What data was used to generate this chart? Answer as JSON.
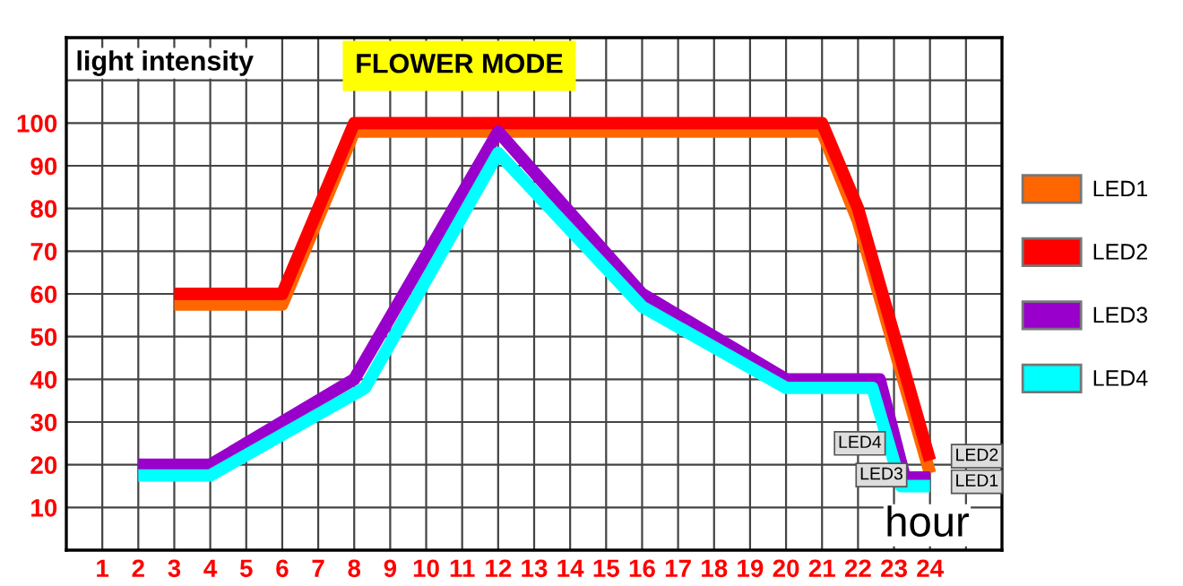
{
  "chart_data": {
    "type": "line",
    "title": "FLOWER MODE",
    "xlabel": "hour",
    "ylabel": "light intensity",
    "xlim": [
      0,
      26
    ],
    "ylim": [
      0,
      120
    ],
    "xticks": [
      1,
      2,
      3,
      4,
      5,
      6,
      7,
      8,
      9,
      10,
      11,
      12,
      13,
      14,
      15,
      16,
      17,
      18,
      19,
      20,
      21,
      22,
      23,
      24,
      {
        "value": 25,
        "label": null
      }
    ],
    "yticks": [
      10,
      20,
      30,
      40,
      50,
      60,
      70,
      80,
      90,
      100,
      {
        "value": 110,
        "label": null
      }
    ],
    "grid": true,
    "legend": "right",
    "marker": "none",
    "line_style": "solid",
    "series": [
      {
        "name": "LED1",
        "color": "#ff6600",
        "x": [
          3,
          6,
          8,
          21,
          22,
          24
        ],
        "values": [
          57.5,
          57.5,
          98,
          98,
          77,
          18
        ]
      },
      {
        "name": "LED2",
        "color": "#ff0000",
        "x": [
          3,
          6,
          8,
          21,
          22,
          24
        ],
        "values": [
          60,
          60,
          100,
          100,
          80,
          21
        ]
      },
      {
        "name": "LED3",
        "color": "#9900cc",
        "x": [
          2,
          4,
          8,
          12,
          16,
          20,
          22.6,
          23.3,
          24
        ],
        "values": [
          20,
          20,
          40,
          98,
          60,
          40,
          40,
          17,
          17
        ]
      },
      {
        "name": "LED4",
        "color": "#00ffff",
        "x": [
          2,
          4,
          8.3,
          12,
          16,
          20,
          22.4,
          23.2,
          24
        ],
        "values": [
          17.5,
          17.5,
          38,
          93,
          57,
          38,
          38,
          15,
          15
        ]
      }
    ],
    "annotations": [
      {
        "text": "LED4",
        "x": 22.05,
        "y": 25
      },
      {
        "text": "LED3",
        "x": 22.65,
        "y": 17.6
      },
      {
        "text": "LED2",
        "x": 25.3,
        "y": 22
      },
      {
        "text": "LED1",
        "x": 25.3,
        "y": 16
      }
    ]
  }
}
